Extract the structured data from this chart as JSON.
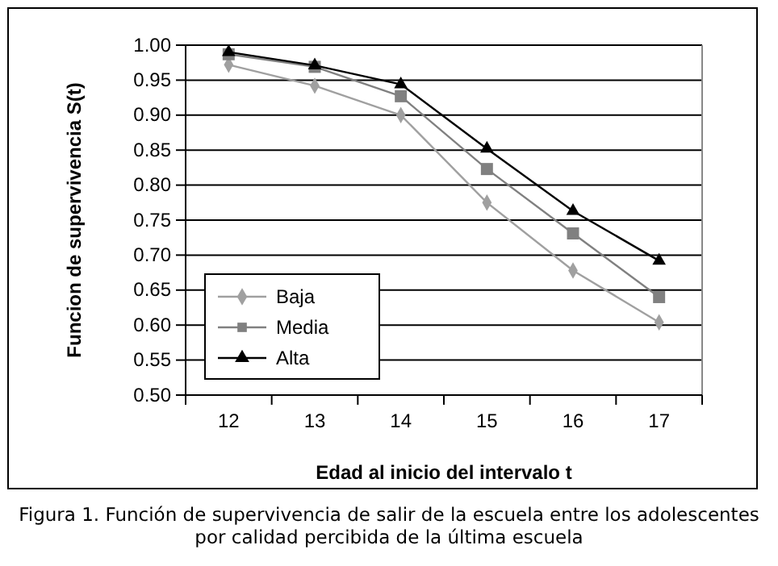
{
  "chart_data": {
    "type": "line",
    "xlabel": "Edad al inicio del intervalo t",
    "ylabel": "Funcion de supervivencia  S(t)",
    "categories": [
      "12",
      "13",
      "14",
      "15",
      "16",
      "17"
    ],
    "series": [
      {
        "name": "Baja",
        "color": "#a0a0a0",
        "marker": "diamond",
        "values": [
          0.972,
          0.942,
          0.9,
          0.775,
          0.678,
          0.604
        ]
      },
      {
        "name": "Media",
        "color": "#808080",
        "marker": "square",
        "values": [
          0.987,
          0.969,
          0.927,
          0.823,
          0.731,
          0.64
        ]
      },
      {
        "name": "Alta",
        "color": "#000000",
        "marker": "triangle",
        "values": [
          0.99,
          0.971,
          0.944,
          0.852,
          0.763,
          0.692
        ]
      }
    ],
    "ylim": [
      0.5,
      1.0
    ],
    "yticks": [
      {
        "value": 0.5,
        "label": "0.50"
      },
      {
        "value": 0.55,
        "label": "0.55"
      },
      {
        "value": 0.6,
        "label": "0.60"
      },
      {
        "value": 0.65,
        "label": "0.65"
      },
      {
        "value": 0.7,
        "label": "0.70"
      },
      {
        "value": 0.75,
        "label": "0.75"
      },
      {
        "value": 0.8,
        "label": "0.80"
      },
      {
        "value": 0.85,
        "label": "0.85"
      },
      {
        "value": 0.9,
        "label": "0.90"
      },
      {
        "value": 0.95,
        "label": "0.95"
      },
      {
        "value": 1.0,
        "label": "1.00"
      }
    ],
    "grid": "y",
    "legend": "bottom left",
    "annotations": [
      "Figura 1. Función de supervivencia de salir de la escuela entre los adolescentes por calidad percibida de la última escuela"
    ]
  }
}
